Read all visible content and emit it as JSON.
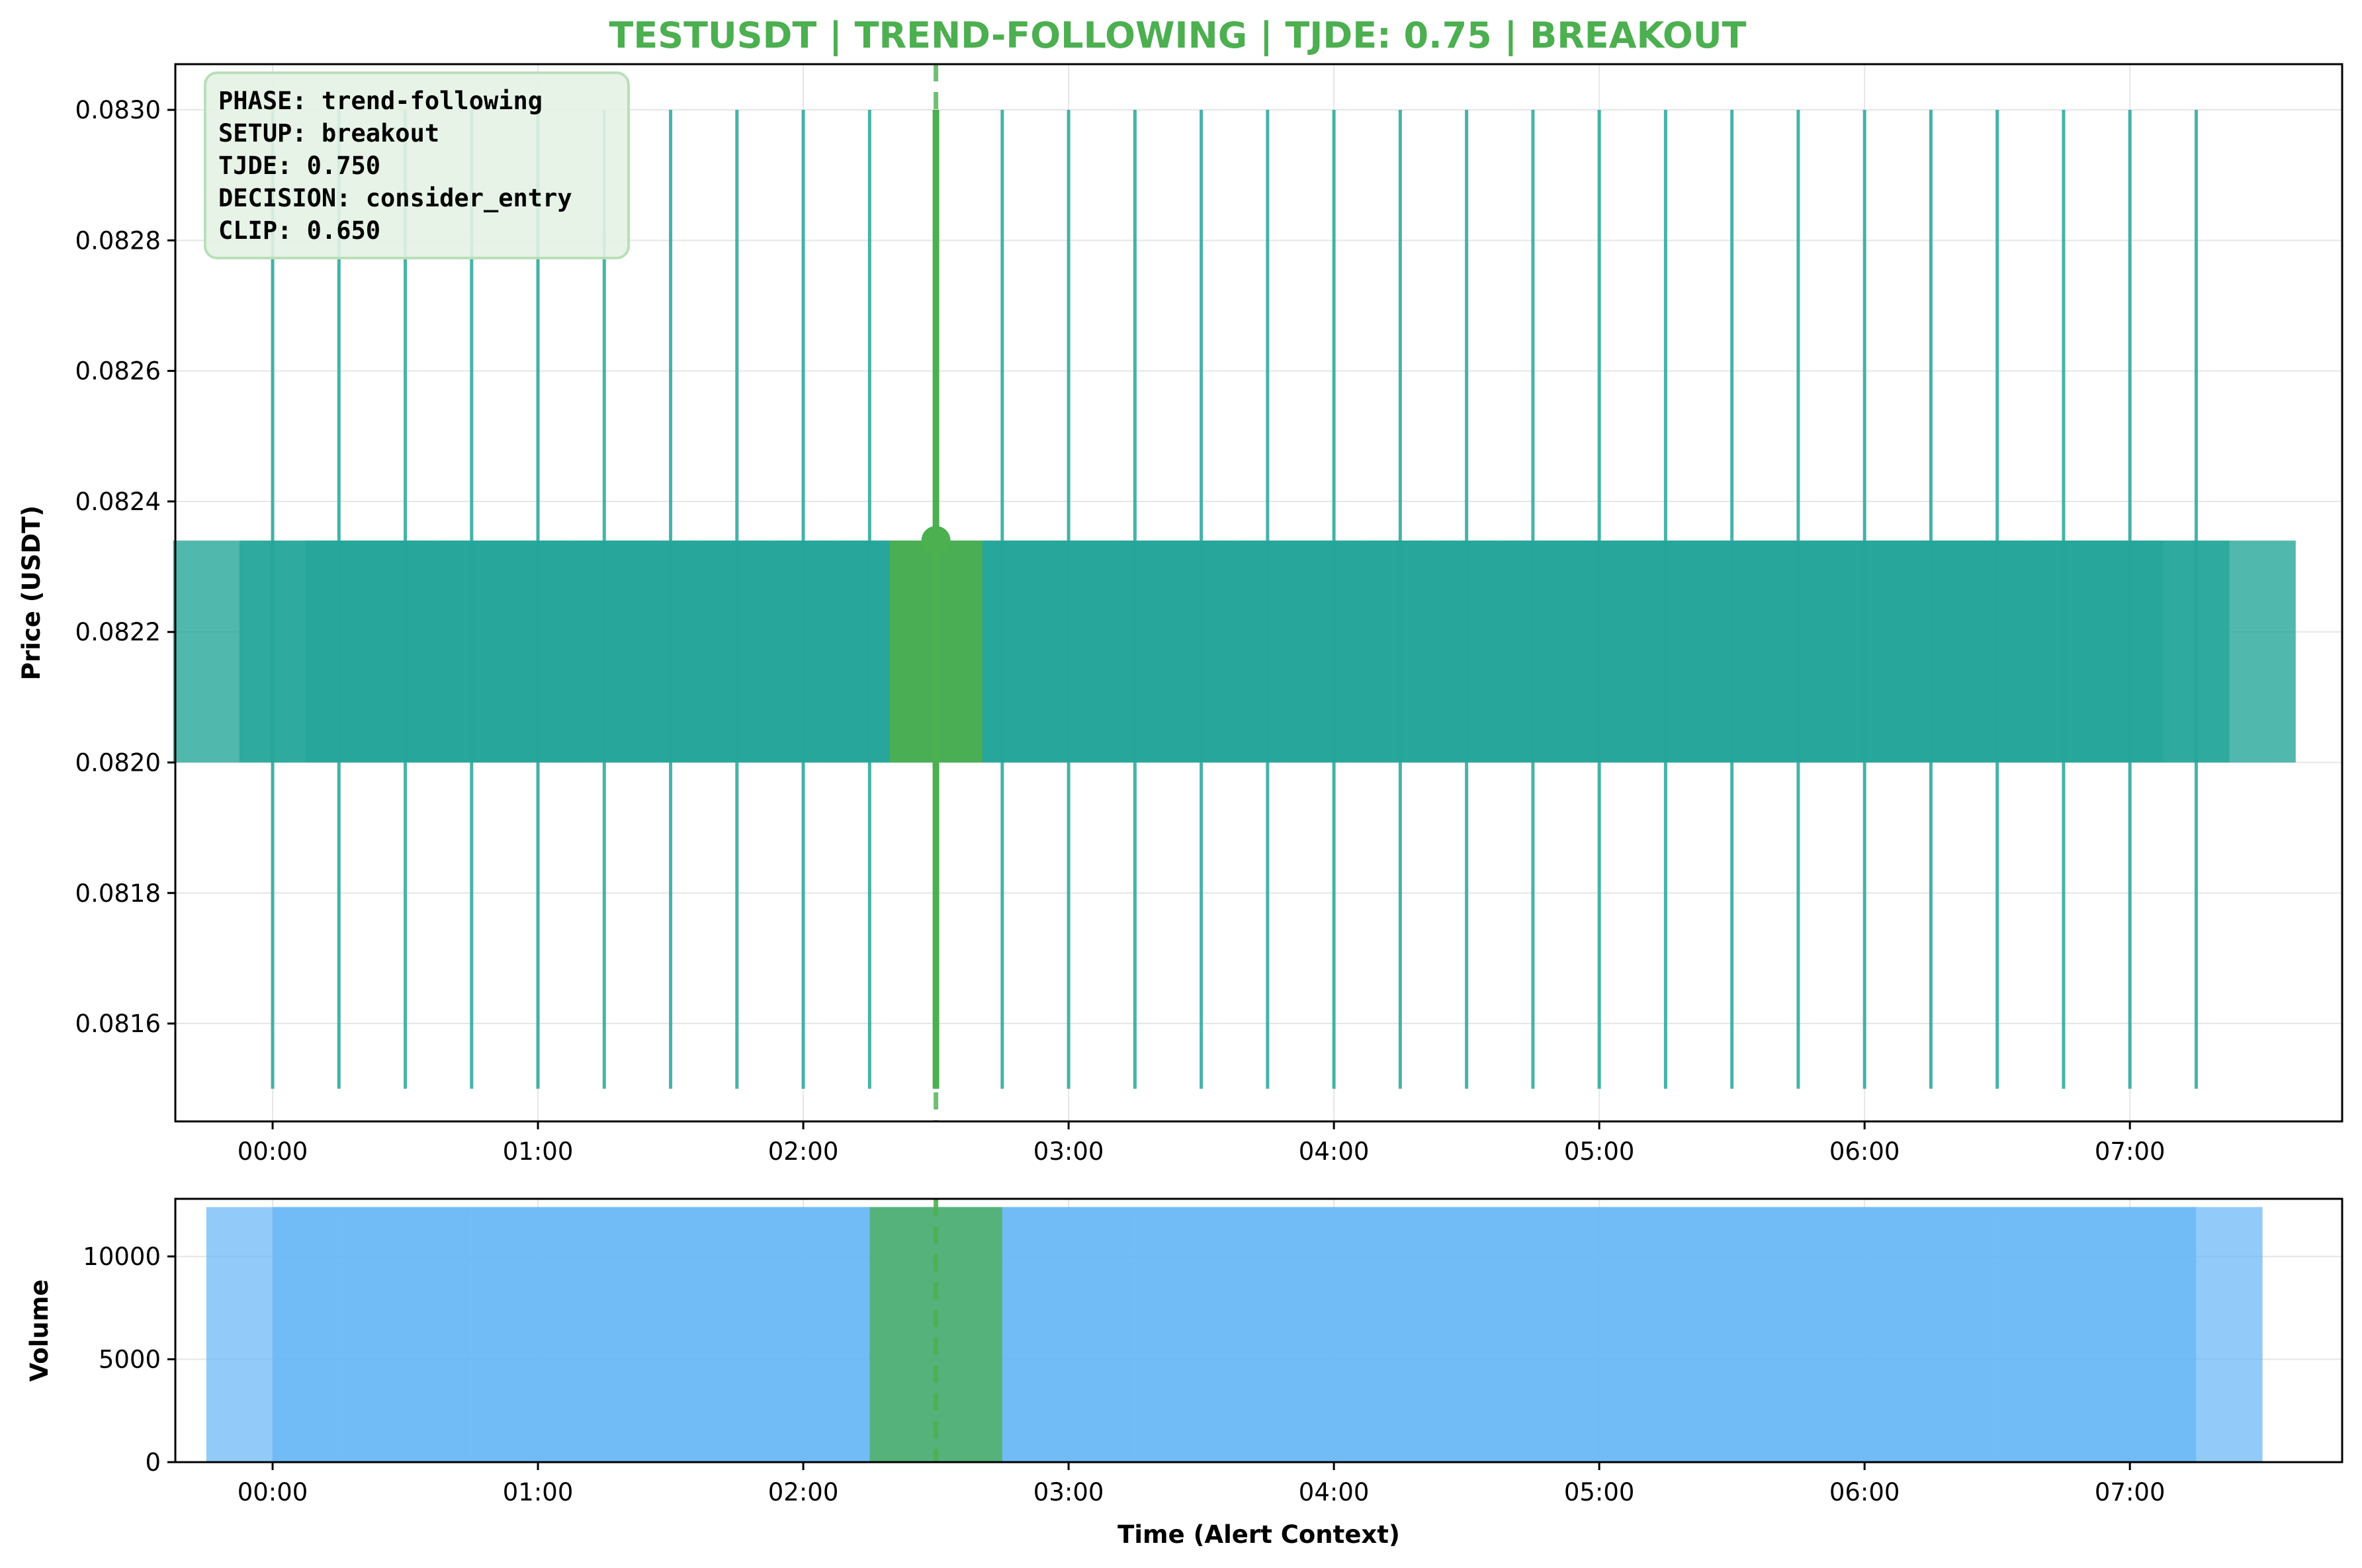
{
  "title": "TESTUSDT | TREND-FOLLOWING | TJDE: 0.75 | BREAKOUT",
  "colors": {
    "title": "#4caf50",
    "candle": "#26a69a",
    "alert": "#4caf50",
    "volume": "#64b5f6",
    "info_bg": "#e3f2e3",
    "info_border": "#b9dfb9"
  },
  "info_box": {
    "lines": [
      "PHASE: trend-following",
      "SETUP: breakout",
      "TJDE: 0.750",
      "DECISION: consider_entry",
      "CLIP: 0.650"
    ]
  },
  "chart_data": [
    {
      "type": "candlestick",
      "ylabel": "Price (USDT)",
      "xlabel": "",
      "xlim": [
        "-00:22",
        "07:48"
      ],
      "ylim": [
        0.08145,
        0.08307
      ],
      "yticks": [
        "0.0816",
        "0.0818",
        "0.0820",
        "0.0822",
        "0.0824",
        "0.0826",
        "0.0828",
        "0.0830"
      ],
      "xticks": [
        "00:00",
        "01:00",
        "02:00",
        "03:00",
        "04:00",
        "05:00",
        "06:00",
        "07:00"
      ],
      "grid": true,
      "candle_times": [
        "00:00",
        "00:15",
        "00:30",
        "00:45",
        "01:00",
        "01:15",
        "01:30",
        "01:45",
        "02:00",
        "02:15",
        "02:30",
        "02:45",
        "03:00",
        "03:15",
        "03:30",
        "03:45",
        "04:00",
        "04:15",
        "04:30",
        "04:45",
        "05:00",
        "05:15",
        "05:30",
        "05:45",
        "06:00",
        "06:15",
        "06:30",
        "06:45",
        "07:00",
        "07:15"
      ],
      "candle": {
        "open": 0.082,
        "close": 0.08234,
        "high": 0.083,
        "low": 0.0815,
        "body_width_hours": 0.75
      },
      "alert": {
        "time": "02:30",
        "price": 0.08234,
        "high": 0.083,
        "low": 0.0815,
        "body_width_hours": 0.35
      }
    },
    {
      "type": "bar",
      "ylabel": "Volume",
      "xlabel": "Time (Alert Context)",
      "xlim": [
        "-00:22",
        "07:48"
      ],
      "ylim": [
        0,
        12800
      ],
      "yticks": [
        "0",
        "5000",
        "10000"
      ],
      "xticks": [
        "00:00",
        "01:00",
        "02:00",
        "03:00",
        "04:00",
        "05:00",
        "06:00",
        "07:00"
      ],
      "grid": true,
      "bar_times": [
        "00:00",
        "00:15",
        "00:30",
        "00:45",
        "01:00",
        "01:15",
        "01:30",
        "01:45",
        "02:00",
        "02:15",
        "02:30",
        "02:45",
        "03:00",
        "03:15",
        "03:30",
        "03:45",
        "04:00",
        "04:15",
        "04:30",
        "04:45",
        "05:00",
        "05:15",
        "05:30",
        "05:45",
        "06:00",
        "06:15",
        "06:30",
        "06:45",
        "07:00",
        "07:15"
      ],
      "volume_value": 12400,
      "bar_width_hours": 0.5,
      "alert_bar": {
        "time": "02:30",
        "value": 12400
      }
    }
  ]
}
